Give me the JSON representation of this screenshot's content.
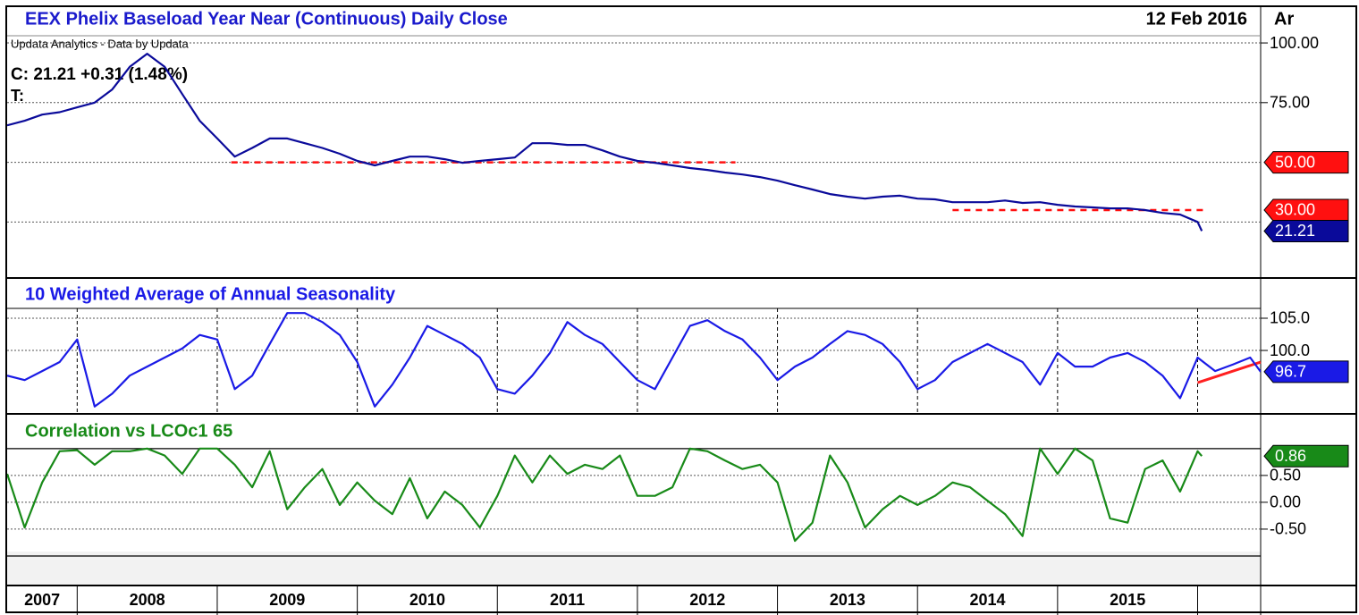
{
  "x_axis": {
    "xlim": [
      2007.5,
      2016.45
    ],
    "xticks": [
      2008,
      2009,
      2010,
      2011,
      2012,
      2013,
      2014,
      2015,
      2016
    ],
    "categories": [
      "2007",
      "2008",
      "2009",
      "2010",
      "2011",
      "2012",
      "2013",
      "2014",
      "2015"
    ]
  },
  "chart_data": [
    {
      "type": "line",
      "title": "EEX Phelix Baseload Year Near (Continuous) Daily Close",
      "date": "12 Feb 2016",
      "corner_label": "Ar",
      "source": "Updata Analytics - Data by Updata",
      "close": "C: 21.21  +0.31 (1.48%)",
      "t_label": "T:",
      "x": [
        2007.5,
        2007.625,
        2007.75,
        2007.875,
        2008,
        2008.125,
        2008.25,
        2008.375,
        2008.5,
        2008.625,
        2008.75,
        2008.875,
        2009,
        2009.125,
        2009.25,
        2009.375,
        2009.5,
        2009.625,
        2009.75,
        2009.875,
        2010,
        2010.125,
        2010.25,
        2010.375,
        2010.5,
        2010.625,
        2010.75,
        2010.875,
        2011,
        2011.125,
        2011.25,
        2011.375,
        2011.5,
        2011.625,
        2011.75,
        2011.875,
        2012,
        2012.125,
        2012.25,
        2012.375,
        2012.5,
        2012.625,
        2012.75,
        2012.875,
        2013,
        2013.125,
        2013.25,
        2013.375,
        2013.5,
        2013.625,
        2013.75,
        2013.875,
        2014,
        2014.125,
        2014.25,
        2014.375,
        2014.5,
        2014.625,
        2014.75,
        2014.875,
        2015,
        2015.125,
        2015.25,
        2015.375,
        2015.5,
        2015.625,
        2015.75,
        2015.875,
        2016,
        2016.03
      ],
      "series": [
        {
          "color": "#0a0a9a",
          "values": [
            65.5,
            67.4,
            70,
            71,
            73,
            75,
            80.5,
            90,
            95.5,
            90,
            78.6,
            67.4,
            60,
            52.4,
            56,
            60,
            60,
            58,
            56,
            53.6,
            50.6,
            48.7,
            50.6,
            52.4,
            52.4,
            51.3,
            49.8,
            50.6,
            51.3,
            52,
            58,
            58,
            57.3,
            57.3,
            55,
            52.4,
            50.6,
            49.8,
            48.7,
            47.6,
            46.8,
            45.7,
            44.9,
            43.8,
            42.3,
            40.4,
            38.6,
            36.7,
            35.6,
            34.8,
            35.6,
            36,
            34.8,
            34.5,
            33.3,
            33.3,
            33.3,
            34,
            33,
            33.3,
            32.2,
            31.5,
            31.1,
            30.7,
            30.7,
            30,
            28.8,
            28.1,
            25,
            21.21
          ]
        }
      ],
      "ylim": [
        1.9,
        115
      ],
      "yticks": [
        {
          "value": 100,
          "label": "100.00"
        },
        {
          "value": 75,
          "label": "75.00"
        }
      ],
      "grid_lines": [
        100,
        75,
        50,
        25
      ],
      "levels": [
        {
          "value": 50,
          "label": "50.00",
          "x": [
            2009.1,
            2012.7
          ],
          "color": "#ff1010"
        },
        {
          "value": 30,
          "label": "30.00",
          "x": [
            2014.25,
            2016.05
          ],
          "color": "#ff1010"
        }
      ]
    },
    {
      "type": "line",
      "title": "10 Weighted Average of Annual Seasonality",
      "x": [
        2007.5,
        2007.625,
        2007.75,
        2007.875,
        2008,
        2008.125,
        2008.25,
        2008.375,
        2008.5,
        2008.625,
        2008.75,
        2008.875,
        2009,
        2009.125,
        2009.25,
        2009.375,
        2009.5,
        2009.625,
        2009.75,
        2009.875,
        2010,
        2010.125,
        2010.25,
        2010.375,
        2010.5,
        2010.625,
        2010.75,
        2010.875,
        2011,
        2011.125,
        2011.25,
        2011.375,
        2011.5,
        2011.625,
        2011.75,
        2011.875,
        2012,
        2012.125,
        2012.25,
        2012.375,
        2012.5,
        2012.625,
        2012.75,
        2012.875,
        2013,
        2013.125,
        2013.25,
        2013.375,
        2013.5,
        2013.625,
        2013.75,
        2013.875,
        2014,
        2014.125,
        2014.25,
        2014.375,
        2014.5,
        2014.625,
        2014.75,
        2014.875,
        2015,
        2015.125,
        2015.25,
        2015.375,
        2015.5,
        2015.625,
        2015.75,
        2015.875,
        2016,
        2016.125,
        2016.25,
        2016.375,
        2016.45
      ],
      "series": [
        {
          "color": "#1a1ae6",
          "values": [
            96.1,
            95.4,
            96.8,
            98.2,
            101.7,
            91.3,
            93.3,
            96.1,
            97.5,
            98.9,
            100.3,
            102.4,
            101.7,
            94,
            96.1,
            101,
            105.8,
            105.8,
            104.4,
            102.4,
            98.2,
            91.3,
            94.7,
            98.9,
            103.8,
            102.4,
            101,
            98.9,
            94,
            93.3,
            96.1,
            99.6,
            104.4,
            102.4,
            101,
            98.2,
            95.4,
            94,
            98.9,
            103.8,
            104.7,
            103,
            101.7,
            98.9,
            95.4,
            97.5,
            98.9,
            101,
            103,
            102.4,
            101,
            98.2,
            94,
            95.4,
            98.2,
            99.6,
            101,
            99.6,
            98.2,
            94.7,
            99.6,
            97.5,
            97.5,
            98.9,
            99.6,
            98.2,
            96.1,
            92.6,
            98.9,
            96.8,
            97.8,
            98.9,
            96.7
          ]
        }
      ],
      "ylim": [
        90.3,
        111.1
      ],
      "yticks": [
        {
          "value": 105,
          "label": "105.0"
        },
        {
          "value": 100,
          "label": "100.0"
        }
      ],
      "grid_lines": [
        105,
        100
      ],
      "trend": {
        "x": [
          2016,
          2016.45
        ],
        "y": [
          95,
          98.2
        ],
        "color": "#ff2020"
      }
    },
    {
      "type": "line",
      "title": "Correlation vs LCOc1 65",
      "x": [
        2007.5,
        2007.625,
        2007.75,
        2007.875,
        2008,
        2008.125,
        2008.25,
        2008.375,
        2008.5,
        2008.625,
        2008.75,
        2008.875,
        2009,
        2009.125,
        2009.25,
        2009.375,
        2009.5,
        2009.625,
        2009.75,
        2009.875,
        2010,
        2010.125,
        2010.25,
        2010.375,
        2010.5,
        2010.625,
        2010.75,
        2010.875,
        2011,
        2011.125,
        2011.25,
        2011.375,
        2011.5,
        2011.625,
        2011.75,
        2011.875,
        2012,
        2012.125,
        2012.25,
        2012.375,
        2012.5,
        2012.625,
        2012.75,
        2012.875,
        2013,
        2013.125,
        2013.25,
        2013.375,
        2013.5,
        2013.625,
        2013.75,
        2013.875,
        2014,
        2014.125,
        2014.25,
        2014.375,
        2014.5,
        2014.625,
        2014.75,
        2014.875,
        2015,
        2015.125,
        2015.25,
        2015.375,
        2015.5,
        2015.625,
        2015.75,
        2015.875,
        2016,
        2016.03
      ],
      "series": [
        {
          "color": "#188a18",
          "values": [
            0.53,
            -0.47,
            0.37,
            0.95,
            0.97,
            0.7,
            0.95,
            0.95,
            1.0,
            0.87,
            0.53,
            1.0,
            1.0,
            0.7,
            0.28,
            0.95,
            -0.13,
            0.28,
            0.62,
            -0.05,
            0.37,
            0.03,
            -0.22,
            0.45,
            -0.3,
            0.2,
            -0.05,
            -0.47,
            0.12,
            0.87,
            0.37,
            0.87,
            0.53,
            0.7,
            0.62,
            0.87,
            0.12,
            0.12,
            0.28,
            1.0,
            0.95,
            0.78,
            0.62,
            0.7,
            0.37,
            -0.72,
            -0.38,
            0.87,
            0.37,
            -0.47,
            -0.13,
            0.12,
            -0.05,
            0.12,
            0.37,
            0.28,
            0.03,
            -0.22,
            -0.63,
            1.0,
            0.53,
            1.0,
            0.78,
            -0.3,
            -0.38,
            0.62,
            0.78,
            0.2,
            0.95,
            0.86
          ]
        }
      ],
      "ylim": [
        -1.55,
        1.63
      ],
      "yticks": [
        {
          "value": 0.5,
          "label": "0.50"
        },
        {
          "value": 0,
          "label": "0.00"
        },
        {
          "value": -0.5,
          "label": "-0.50"
        }
      ],
      "grid_lines": [
        0.5,
        0,
        -0.5
      ],
      "bands": [
        1,
        -1
      ]
    }
  ]
}
